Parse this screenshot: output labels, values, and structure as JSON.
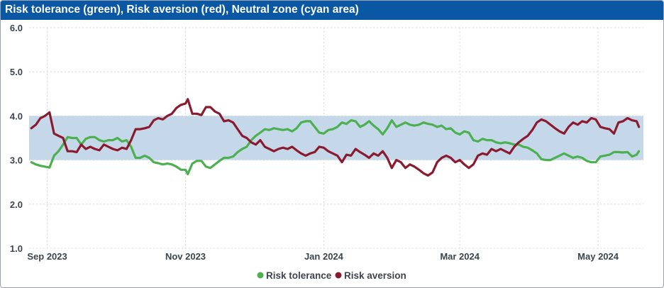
{
  "header": {
    "title": "Risk tolerance (green), Risk aversion (red), Neutral zone (cyan area)"
  },
  "colors": {
    "header_bg": "#0a57a3",
    "tolerance": "#4caf50",
    "aversion": "#8b1a2e",
    "neutral_zone": "#c5d8ea",
    "grid": "#d6d6d6"
  },
  "chart_data": {
    "type": "line",
    "title": "Risk tolerance (green), Risk aversion (red), Neutral zone (cyan area)",
    "xlabel": "",
    "ylabel": "",
    "ylim": [
      1.0,
      6.0
    ],
    "y_ticks": [
      "1.0",
      "2.0",
      "3.0",
      "4.0",
      "5.0",
      "6.0"
    ],
    "x_ticks": [
      {
        "label": "Sep 2023",
        "date": "2023-09-01"
      },
      {
        "label": "Nov 2023",
        "date": "2023-11-01"
      },
      {
        "label": "Jan 2024",
        "date": "2024-01-01"
      },
      {
        "label": "Mar 2024",
        "date": "2024-03-01"
      },
      {
        "label": "May 2024",
        "date": "2024-05-01"
      }
    ],
    "xlim": [
      "2023-08-24",
      "2024-05-21"
    ],
    "neutral_zone": [
      3.0,
      4.0
    ],
    "grid": true,
    "legend_position": "bottom-center",
    "series": [
      {
        "name": "Risk tolerance",
        "color": "#4caf50",
        "points": [
          [
            "2023-08-25",
            2.95
          ],
          [
            "2023-08-27",
            2.9
          ],
          [
            "2023-08-29",
            2.87
          ],
          [
            "2023-08-31",
            2.85
          ],
          [
            "2023-09-02",
            2.83
          ],
          [
            "2023-09-04",
            3.1
          ],
          [
            "2023-09-06",
            3.2
          ],
          [
            "2023-09-08",
            3.35
          ],
          [
            "2023-09-10",
            3.52
          ],
          [
            "2023-09-12",
            3.5
          ],
          [
            "2023-09-14",
            3.5
          ],
          [
            "2023-09-16",
            3.35
          ],
          [
            "2023-09-18",
            3.48
          ],
          [
            "2023-09-20",
            3.52
          ],
          [
            "2023-09-22",
            3.52
          ],
          [
            "2023-09-24",
            3.45
          ],
          [
            "2023-09-26",
            3.42
          ],
          [
            "2023-09-28",
            3.45
          ],
          [
            "2023-09-30",
            3.45
          ],
          [
            "2023-10-02",
            3.5
          ],
          [
            "2023-10-04",
            3.42
          ],
          [
            "2023-10-06",
            3.45
          ],
          [
            "2023-10-08",
            3.3
          ],
          [
            "2023-10-10",
            3.05
          ],
          [
            "2023-10-12",
            3.05
          ],
          [
            "2023-10-14",
            3.1
          ],
          [
            "2023-10-16",
            3.05
          ],
          [
            "2023-10-18",
            2.95
          ],
          [
            "2023-10-20",
            2.93
          ],
          [
            "2023-10-22",
            2.9
          ],
          [
            "2023-10-24",
            2.92
          ],
          [
            "2023-10-26",
            2.9
          ],
          [
            "2023-10-28",
            2.85
          ],
          [
            "2023-10-30",
            2.78
          ],
          [
            "2023-11-01",
            2.78
          ],
          [
            "2023-11-02",
            2.68
          ],
          [
            "2023-11-04",
            2.92
          ],
          [
            "2023-11-06",
            2.98
          ],
          [
            "2023-11-08",
            2.98
          ],
          [
            "2023-11-10",
            2.85
          ],
          [
            "2023-11-12",
            2.82
          ],
          [
            "2023-11-14",
            2.9
          ],
          [
            "2023-11-16",
            2.98
          ],
          [
            "2023-11-18",
            3.05
          ],
          [
            "2023-11-20",
            3.05
          ],
          [
            "2023-11-22",
            3.08
          ],
          [
            "2023-11-24",
            3.18
          ],
          [
            "2023-11-26",
            3.25
          ],
          [
            "2023-11-28",
            3.3
          ],
          [
            "2023-11-30",
            3.45
          ],
          [
            "2023-12-02",
            3.55
          ],
          [
            "2023-12-04",
            3.62
          ],
          [
            "2023-12-06",
            3.7
          ],
          [
            "2023-12-08",
            3.68
          ],
          [
            "2023-12-10",
            3.72
          ],
          [
            "2023-12-12",
            3.7
          ],
          [
            "2023-12-14",
            3.68
          ],
          [
            "2023-12-16",
            3.7
          ],
          [
            "2023-12-18",
            3.65
          ],
          [
            "2023-12-20",
            3.72
          ],
          [
            "2023-12-22",
            3.85
          ],
          [
            "2023-12-24",
            3.88
          ],
          [
            "2023-12-26",
            3.88
          ],
          [
            "2023-12-28",
            3.75
          ],
          [
            "2023-12-30",
            3.62
          ],
          [
            "2024-01-01",
            3.6
          ],
          [
            "2024-01-03",
            3.68
          ],
          [
            "2024-01-05",
            3.7
          ],
          [
            "2024-01-07",
            3.75
          ],
          [
            "2024-01-09",
            3.85
          ],
          [
            "2024-01-11",
            3.82
          ],
          [
            "2024-01-13",
            3.9
          ],
          [
            "2024-01-15",
            3.88
          ],
          [
            "2024-01-17",
            3.75
          ],
          [
            "2024-01-19",
            3.8
          ],
          [
            "2024-01-21",
            3.88
          ],
          [
            "2024-01-23",
            3.78
          ],
          [
            "2024-01-25",
            3.7
          ],
          [
            "2024-01-27",
            3.58
          ],
          [
            "2024-01-29",
            3.72
          ],
          [
            "2024-01-31",
            3.9
          ],
          [
            "2024-02-02",
            3.75
          ],
          [
            "2024-02-04",
            3.8
          ],
          [
            "2024-02-06",
            3.85
          ],
          [
            "2024-02-08",
            3.8
          ],
          [
            "2024-02-10",
            3.78
          ],
          [
            "2024-02-12",
            3.8
          ],
          [
            "2024-02-14",
            3.85
          ],
          [
            "2024-02-16",
            3.82
          ],
          [
            "2024-02-18",
            3.8
          ],
          [
            "2024-02-20",
            3.75
          ],
          [
            "2024-02-22",
            3.78
          ],
          [
            "2024-02-24",
            3.7
          ],
          [
            "2024-02-26",
            3.72
          ],
          [
            "2024-02-28",
            3.62
          ],
          [
            "2024-03-01",
            3.58
          ],
          [
            "2024-03-03",
            3.65
          ],
          [
            "2024-03-05",
            3.62
          ],
          [
            "2024-03-07",
            3.45
          ],
          [
            "2024-03-09",
            3.42
          ],
          [
            "2024-03-11",
            3.48
          ],
          [
            "2024-03-13",
            3.45
          ],
          [
            "2024-03-15",
            3.45
          ],
          [
            "2024-03-17",
            3.4
          ],
          [
            "2024-03-19",
            3.38
          ],
          [
            "2024-03-21",
            3.4
          ],
          [
            "2024-03-23",
            3.38
          ],
          [
            "2024-03-25",
            3.35
          ],
          [
            "2024-03-27",
            3.35
          ],
          [
            "2024-03-29",
            3.3
          ],
          [
            "2024-03-31",
            3.28
          ],
          [
            "2024-04-02",
            3.22
          ],
          [
            "2024-04-04",
            3.15
          ],
          [
            "2024-04-06",
            3.02
          ],
          [
            "2024-04-08",
            3.0
          ],
          [
            "2024-04-10",
            3.0
          ],
          [
            "2024-04-12",
            3.05
          ],
          [
            "2024-04-14",
            3.1
          ],
          [
            "2024-04-16",
            3.15
          ],
          [
            "2024-04-18",
            3.1
          ],
          [
            "2024-04-20",
            3.05
          ],
          [
            "2024-04-22",
            3.08
          ],
          [
            "2024-04-24",
            3.05
          ],
          [
            "2024-04-26",
            2.98
          ],
          [
            "2024-04-28",
            2.95
          ],
          [
            "2024-04-30",
            2.95
          ],
          [
            "2024-05-02",
            3.08
          ],
          [
            "2024-05-04",
            3.1
          ],
          [
            "2024-05-06",
            3.12
          ],
          [
            "2024-05-08",
            3.18
          ],
          [
            "2024-05-10",
            3.18
          ],
          [
            "2024-05-12",
            3.17
          ],
          [
            "2024-05-14",
            3.18
          ],
          [
            "2024-05-16",
            3.08
          ],
          [
            "2024-05-18",
            3.12
          ],
          [
            "2024-05-19",
            3.2
          ]
        ]
      },
      {
        "name": "Risk aversion",
        "color": "#8b1a2e",
        "points": [
          [
            "2023-08-25",
            3.72
          ],
          [
            "2023-08-27",
            3.8
          ],
          [
            "2023-08-29",
            3.95
          ],
          [
            "2023-08-31",
            4.0
          ],
          [
            "2023-09-02",
            4.08
          ],
          [
            "2023-09-04",
            3.6
          ],
          [
            "2023-09-06",
            3.55
          ],
          [
            "2023-09-08",
            3.5
          ],
          [
            "2023-09-10",
            3.2
          ],
          [
            "2023-09-12",
            3.2
          ],
          [
            "2023-09-14",
            3.18
          ],
          [
            "2023-09-16",
            3.35
          ],
          [
            "2023-09-18",
            3.25
          ],
          [
            "2023-09-20",
            3.3
          ],
          [
            "2023-09-22",
            3.25
          ],
          [
            "2023-09-24",
            3.22
          ],
          [
            "2023-09-26",
            3.35
          ],
          [
            "2023-09-28",
            3.3
          ],
          [
            "2023-09-30",
            3.25
          ],
          [
            "2023-10-02",
            3.22
          ],
          [
            "2023-10-04",
            3.28
          ],
          [
            "2023-10-06",
            3.25
          ],
          [
            "2023-10-08",
            3.45
          ],
          [
            "2023-10-10",
            3.7
          ],
          [
            "2023-10-12",
            3.7
          ],
          [
            "2023-10-14",
            3.72
          ],
          [
            "2023-10-16",
            3.75
          ],
          [
            "2023-10-18",
            3.9
          ],
          [
            "2023-10-20",
            3.95
          ],
          [
            "2023-10-22",
            3.92
          ],
          [
            "2023-10-24",
            4.0
          ],
          [
            "2023-10-26",
            4.05
          ],
          [
            "2023-10-28",
            4.18
          ],
          [
            "2023-10-30",
            4.25
          ],
          [
            "2023-11-01",
            4.28
          ],
          [
            "2023-11-02",
            4.38
          ],
          [
            "2023-11-04",
            4.05
          ],
          [
            "2023-11-06",
            4.05
          ],
          [
            "2023-11-08",
            4.02
          ],
          [
            "2023-11-10",
            4.2
          ],
          [
            "2023-11-12",
            4.2
          ],
          [
            "2023-11-14",
            4.1
          ],
          [
            "2023-11-16",
            4.05
          ],
          [
            "2023-11-18",
            3.88
          ],
          [
            "2023-11-20",
            3.9
          ],
          [
            "2023-11-22",
            3.85
          ],
          [
            "2023-11-24",
            3.7
          ],
          [
            "2023-11-26",
            3.55
          ],
          [
            "2023-11-28",
            3.5
          ],
          [
            "2023-11-30",
            3.4
          ],
          [
            "2023-12-02",
            3.35
          ],
          [
            "2023-12-04",
            3.45
          ],
          [
            "2023-12-06",
            3.3
          ],
          [
            "2023-12-08",
            3.25
          ],
          [
            "2023-12-10",
            3.2
          ],
          [
            "2023-12-12",
            3.25
          ],
          [
            "2023-12-14",
            3.28
          ],
          [
            "2023-12-16",
            3.25
          ],
          [
            "2023-12-18",
            3.3
          ],
          [
            "2023-12-20",
            3.22
          ],
          [
            "2023-12-22",
            3.15
          ],
          [
            "2023-12-24",
            3.1
          ],
          [
            "2023-12-26",
            3.15
          ],
          [
            "2023-12-28",
            3.18
          ],
          [
            "2023-12-30",
            3.3
          ],
          [
            "2024-01-01",
            3.28
          ],
          [
            "2024-01-03",
            3.2
          ],
          [
            "2024-01-05",
            3.15
          ],
          [
            "2024-01-07",
            3.1
          ],
          [
            "2024-01-09",
            2.95
          ],
          [
            "2024-01-11",
            3.12
          ],
          [
            "2024-01-13",
            3.1
          ],
          [
            "2024-01-15",
            3.25
          ],
          [
            "2024-01-17",
            3.18
          ],
          [
            "2024-01-19",
            3.12
          ],
          [
            "2024-01-21",
            3.05
          ],
          [
            "2024-01-23",
            3.15
          ],
          [
            "2024-01-25",
            3.1
          ],
          [
            "2024-01-27",
            3.2
          ],
          [
            "2024-01-29",
            3.05
          ],
          [
            "2024-01-31",
            2.82
          ],
          [
            "2024-02-02",
            3.0
          ],
          [
            "2024-02-04",
            2.95
          ],
          [
            "2024-02-06",
            2.82
          ],
          [
            "2024-02-08",
            2.9
          ],
          [
            "2024-02-10",
            2.85
          ],
          [
            "2024-02-12",
            2.78
          ],
          [
            "2024-02-14",
            2.7
          ],
          [
            "2024-02-16",
            2.65
          ],
          [
            "2024-02-18",
            2.72
          ],
          [
            "2024-02-20",
            2.95
          ],
          [
            "2024-02-22",
            3.05
          ],
          [
            "2024-02-24",
            3.1
          ],
          [
            "2024-02-26",
            3.05
          ],
          [
            "2024-02-28",
            2.95
          ],
          [
            "2024-03-01",
            3.0
          ],
          [
            "2024-03-03",
            2.9
          ],
          [
            "2024-03-05",
            2.82
          ],
          [
            "2024-03-07",
            2.9
          ],
          [
            "2024-03-09",
            3.1
          ],
          [
            "2024-03-11",
            3.15
          ],
          [
            "2024-03-13",
            3.12
          ],
          [
            "2024-03-15",
            3.25
          ],
          [
            "2024-03-17",
            3.2
          ],
          [
            "2024-03-19",
            3.25
          ],
          [
            "2024-03-21",
            3.2
          ],
          [
            "2024-03-23",
            3.15
          ],
          [
            "2024-03-25",
            3.3
          ],
          [
            "2024-03-27",
            3.4
          ],
          [
            "2024-03-29",
            3.48
          ],
          [
            "2024-03-31",
            3.55
          ],
          [
            "2024-04-02",
            3.68
          ],
          [
            "2024-04-04",
            3.85
          ],
          [
            "2024-04-06",
            3.92
          ],
          [
            "2024-04-08",
            3.88
          ],
          [
            "2024-04-10",
            3.8
          ],
          [
            "2024-04-12",
            3.72
          ],
          [
            "2024-04-14",
            3.65
          ],
          [
            "2024-04-16",
            3.6
          ],
          [
            "2024-04-18",
            3.75
          ],
          [
            "2024-04-20",
            3.85
          ],
          [
            "2024-04-22",
            3.8
          ],
          [
            "2024-04-24",
            3.88
          ],
          [
            "2024-04-26",
            3.85
          ],
          [
            "2024-04-28",
            3.95
          ],
          [
            "2024-04-30",
            3.92
          ],
          [
            "2024-05-02",
            3.75
          ],
          [
            "2024-05-04",
            3.72
          ],
          [
            "2024-05-06",
            3.7
          ],
          [
            "2024-05-08",
            3.6
          ],
          [
            "2024-05-10",
            3.85
          ],
          [
            "2024-05-12",
            3.88
          ],
          [
            "2024-05-14",
            3.95
          ],
          [
            "2024-05-16",
            3.9
          ],
          [
            "2024-05-18",
            3.88
          ],
          [
            "2024-05-19",
            3.75
          ]
        ]
      }
    ]
  }
}
